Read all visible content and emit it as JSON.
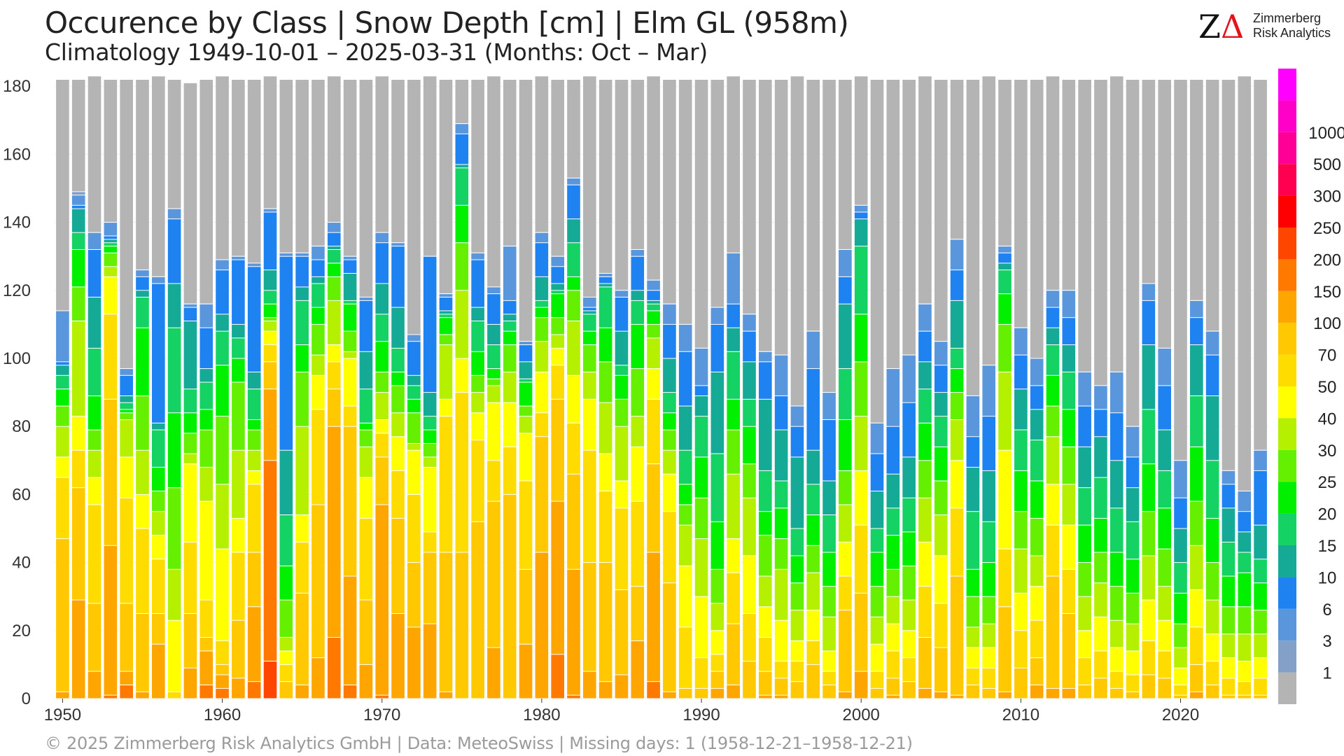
{
  "header": {
    "title": "Occurence by Class | Snow Depth [cm] | Elm  GL (958m)",
    "subtitle": "Climatology 1949-10-01 – 2025-03-31 (Months: Oct – Mar)"
  },
  "logo": {
    "mark_z": "Z",
    "mark_delta": "Δ",
    "line1": "Zimmerberg",
    "line2": "Risk Analytics"
  },
  "footer": "©  2025 Zimmerberg Risk Analytics GmbH | Data: MeteoSwiss | Missing days: 1 (1958-12-21–1958-12-21)",
  "chart_data": {
    "type": "bar",
    "stacked": true,
    "title": "Occurence by Class | Snow Depth [cm] | Elm  GL (958m)",
    "subtitle": "Climatology 1949-10-01 – 2025-03-31 (Months: Oct – Mar)",
    "xlabel": "",
    "ylabel": "",
    "ylim": [
      0,
      182
    ],
    "yticks": [
      0,
      20,
      40,
      60,
      80,
      100,
      120,
      140,
      160,
      180
    ],
    "xticks": [
      1950,
      1960,
      1970,
      1980,
      1990,
      2000,
      2010,
      2020
    ],
    "grid": true,
    "legend": "right (color bar)",
    "colorbar": {
      "labels": [
        "1",
        "3",
        "6",
        "10",
        "15",
        "20",
        "25",
        "30",
        "40",
        "50",
        "70",
        "100",
        "150",
        "200",
        "250",
        "300",
        "500",
        "1000"
      ],
      "colors": [
        "#b4b4b4",
        "#82a0c8",
        "#5a96dc",
        "#1e82f0",
        "#14aa96",
        "#14d264",
        "#00f000",
        "#64f000",
        "#b4f000",
        "#ffff00",
        "#ffdc00",
        "#ffc800",
        "#ffa500",
        "#ff7800",
        "#ff4600",
        "#ff0000",
        "#ff0050",
        "#ff0096",
        "#ff00c8",
        "#ff00ff"
      ]
    },
    "classes": [
      "0",
      "1-3",
      "3-6",
      "6-10",
      "10-15",
      "15-20",
      "20-25",
      "25-30",
      "30-40",
      "40-50",
      "50-70",
      "70-100",
      "100-150",
      "150-200",
      "200-250",
      "250-300",
      "300-500",
      "500-1000",
      ">1000"
    ],
    "class_colors": [
      "#b4b4b4",
      "#82a0c8",
      "#5a96dc",
      "#1e82f0",
      "#14aa96",
      "#14d264",
      "#00f000",
      "#64f000",
      "#b4f000",
      "#ffff00",
      "#ffdc00",
      "#ffc800",
      "#ffa500",
      "#ff7800",
      "#ff4600",
      "#ff0000",
      "#ff0050",
      "#ff0096",
      "#ff00c8"
    ],
    "years": [
      1950,
      1951,
      1952,
      1953,
      1954,
      1955,
      1956,
      1957,
      1958,
      1959,
      1960,
      1961,
      1962,
      1963,
      1964,
      1965,
      1966,
      1967,
      1968,
      1969,
      1970,
      1971,
      1972,
      1973,
      1974,
      1975,
      1976,
      1977,
      1978,
      1979,
      1980,
      1981,
      1982,
      1983,
      1984,
      1985,
      1986,
      1987,
      1988,
      1989,
      1990,
      1991,
      1992,
      1993,
      1994,
      1995,
      1996,
      1997,
      1998,
      1999,
      2000,
      2001,
      2002,
      2003,
      2004,
      2005,
      2006,
      2007,
      2008,
      2009,
      2010,
      2011,
      2012,
      2013,
      2014,
      2015,
      2016,
      2017,
      2018,
      2019,
      2020,
      2021,
      2022,
      2023,
      2024,
      2025
    ],
    "totals": [
      182,
      182,
      183,
      182,
      182,
      182,
      183,
      182,
      181,
      182,
      183,
      182,
      182,
      183,
      182,
      182,
      182,
      183,
      182,
      182,
      183,
      182,
      182,
      183,
      182,
      182,
      182,
      183,
      182,
      182,
      183,
      182,
      182,
      183,
      182,
      182,
      182,
      183,
      182,
      182,
      182,
      182,
      183,
      182,
      182,
      182,
      183,
      182,
      182,
      182,
      183,
      182,
      182,
      182,
      183,
      182,
      182,
      182,
      183,
      182,
      182,
      182,
      183,
      182,
      182,
      182,
      183,
      182,
      182,
      182,
      182,
      182,
      182,
      182,
      183,
      182
    ],
    "cumulative_tops": [
      [
        114,
        114,
        99,
        98,
        95,
        91,
        86,
        80,
        71,
        65,
        47,
        2
      ],
      [
        149,
        148,
        145,
        144,
        137,
        132,
        121,
        111,
        83,
        73,
        62,
        29
      ],
      [
        137,
        137,
        132,
        118,
        103,
        89,
        79,
        73,
        65,
        57,
        28,
        8
      ],
      [
        140,
        140,
        136,
        135,
        134,
        133,
        131,
        127,
        124,
        113,
        88,
        45,
        1
      ],
      [
        97,
        97,
        95,
        89,
        87,
        85,
        84,
        82,
        71,
        59,
        28,
        8,
        4
      ],
      [
        126,
        126,
        124,
        120,
        118,
        109,
        89,
        73,
        60,
        50,
        25,
        2
      ],
      [
        124,
        124,
        122,
        81,
        79,
        68,
        61,
        55,
        48,
        41,
        25,
        16
      ],
      [
        144,
        144,
        141,
        122,
        109,
        84,
        62,
        38,
        23,
        2
      ],
      [
        116,
        116,
        115,
        111,
        91,
        84,
        78,
        72,
        69,
        46,
        25,
        9
      ],
      [
        116,
        116,
        109,
        97,
        93,
        85,
        79,
        68,
        58,
        29,
        18,
        14,
        4
      ],
      [
        129,
        129,
        126,
        113,
        108,
        98,
        83,
        63,
        44,
        17,
        10,
        7,
        3
      ],
      [
        130,
        130,
        129,
        110,
        106,
        100,
        93,
        73,
        53,
        43,
        23,
        6
      ],
      [
        128,
        128,
        127,
        96,
        91,
        82,
        79,
        73,
        67,
        63,
        43,
        27,
        5
      ],
      [
        144,
        144,
        143,
        126,
        120,
        116,
        112,
        111,
        108,
        104,
        99,
        91,
        70,
        11
      ],
      [
        131,
        131,
        130,
        73,
        54,
        39,
        29,
        18,
        14,
        10,
        5
      ],
      [
        131,
        131,
        130,
        121,
        117,
        104,
        96,
        80,
        54,
        46,
        31,
        4
      ],
      [
        133,
        133,
        129,
        124,
        122,
        115,
        110,
        101,
        95,
        85,
        57,
        12
      ],
      [
        140,
        140,
        137,
        133,
        132,
        128,
        124,
        117,
        104,
        99,
        91,
        80,
        18
      ],
      [
        130,
        130,
        129,
        125,
        117,
        116,
        108,
        102,
        100,
        86,
        80,
        36,
        4
      ],
      [
        118,
        118,
        117,
        102,
        91,
        81,
        79,
        74,
        65,
        53,
        29,
        10
      ],
      [
        137,
        137,
        134,
        122,
        113,
        105,
        96,
        90,
        82,
        78,
        71,
        57,
        1
      ],
      [
        134,
        134,
        133,
        115,
        103,
        96,
        92,
        84,
        77,
        67,
        53,
        25
      ],
      [
        107,
        107,
        105,
        95,
        92,
        88,
        84,
        75,
        73,
        60,
        40,
        21
      ],
      [
        130,
        130,
        130,
        90,
        83,
        79,
        75,
        71,
        68,
        49,
        43,
        22
      ],
      [
        119,
        119,
        118,
        114,
        113,
        112,
        107,
        104,
        88,
        83,
        43,
        2
      ],
      [
        169,
        169,
        166,
        157,
        156,
        145,
        134,
        120,
        100,
        90,
        43
      ],
      [
        131,
        131,
        129,
        115,
        111,
        102,
        95,
        90,
        84,
        76,
        52
      ],
      [
        121,
        121,
        119,
        110,
        104,
        97,
        94,
        92,
        87,
        70,
        58,
        15
      ],
      [
        133,
        133,
        117,
        113,
        111,
        108,
        104,
        96,
        87,
        74,
        60
      ],
      [
        105,
        105,
        104,
        99,
        94,
        93,
        86,
        83,
        78,
        64,
        38,
        16
      ],
      [
        137,
        137,
        134,
        124,
        117,
        115,
        112,
        105,
        96,
        84,
        77,
        43
      ],
      [
        130,
        130,
        127,
        122,
        120,
        119,
        112,
        107,
        103,
        98,
        88,
        58,
        13
      ],
      [
        153,
        153,
        151,
        141,
        134,
        124,
        120,
        111,
        95,
        81,
        66,
        38,
        1
      ],
      [
        118,
        118,
        115,
        114,
        113,
        108,
        104,
        96,
        88,
        73,
        40,
        8
      ],
      [
        125,
        125,
        124,
        122,
        121,
        109,
        99,
        87,
        72,
        61,
        40,
        5
      ],
      [
        120,
        120,
        118,
        108,
        98,
        95,
        88,
        80,
        64,
        56,
        32,
        7
      ],
      [
        132,
        132,
        130,
        120,
        117,
        110,
        97,
        83,
        74,
        58,
        33,
        17
      ],
      [
        123,
        123,
        120,
        117,
        116,
        114,
        110,
        106,
        97,
        88,
        69,
        43,
        5
      ],
      [
        116,
        116,
        110,
        100,
        90,
        84,
        79,
        73,
        66,
        55,
        34,
        2
      ],
      [
        110,
        110,
        102,
        86,
        73,
        63,
        57,
        51,
        39,
        21,
        3
      ],
      [
        103,
        103,
        92,
        89,
        83,
        71,
        59,
        47,
        30,
        12,
        3
      ],
      [
        115,
        115,
        110,
        96,
        72,
        52,
        38,
        28,
        20,
        13,
        8,
        3
      ],
      [
        131,
        131,
        116,
        109,
        102,
        88,
        79,
        66,
        47,
        37,
        22,
        4
      ],
      [
        113,
        113,
        108,
        99,
        88,
        80,
        69,
        59,
        42,
        25,
        11
      ],
      [
        102,
        102,
        99,
        88,
        67,
        55,
        48,
        36,
        27,
        18,
        8,
        1
      ],
      [
        101,
        101,
        89,
        79,
        64,
        56,
        47,
        38,
        23,
        11,
        6,
        1
      ],
      [
        86,
        86,
        80,
        71,
        50,
        42,
        34,
        26,
        17,
        11,
        5
      ],
      [
        108,
        108,
        97,
        73,
        63,
        54,
        45,
        37,
        26,
        17,
        10
      ],
      [
        90,
        90,
        82,
        64,
        54,
        43,
        33,
        24,
        14,
        8,
        4
      ],
      [
        132,
        132,
        124,
        116,
        97,
        82,
        67,
        57,
        46,
        36,
        26,
        2
      ],
      [
        145,
        145,
        143,
        141,
        133,
        113,
        99,
        83,
        67,
        51,
        31,
        8
      ],
      [
        81,
        81,
        72,
        61,
        50,
        43,
        33,
        24,
        16,
        8,
        3
      ],
      [
        97,
        97,
        80,
        66,
        56,
        48,
        38,
        30,
        22,
        14,
        6,
        1
      ],
      [
        101,
        101,
        87,
        71,
        59,
        49,
        39,
        29,
        20,
        12,
        5
      ],
      [
        116,
        116,
        108,
        99,
        91,
        81,
        70,
        59,
        46,
        33,
        18,
        3
      ],
      [
        105,
        105,
        98,
        90,
        83,
        74,
        64,
        54,
        42,
        28,
        15,
        2
      ],
      [
        135,
        135,
        126,
        117,
        103,
        97,
        90,
        82,
        70,
        56,
        36,
        1
      ],
      [
        89,
        89,
        77,
        68,
        55,
        38,
        30,
        21,
        15,
        9,
        4
      ],
      [
        98,
        98,
        83,
        67,
        52,
        40,
        30,
        22,
        15,
        9,
        3
      ],
      [
        133,
        133,
        131,
        128,
        126,
        119,
        110,
        96,
        73,
        44,
        27,
        2
      ],
      [
        109,
        109,
        101,
        91,
        79,
        67,
        55,
        44,
        31,
        20,
        9
      ],
      [
        100,
        100,
        92,
        85,
        76,
        64,
        53,
        42,
        33,
        23,
        12,
        4
      ],
      [
        120,
        120,
        115,
        109,
        104,
        95,
        86,
        77,
        63,
        51,
        36,
        3
      ],
      [
        120,
        120,
        112,
        104,
        96,
        85,
        74,
        63,
        51,
        38,
        25,
        3
      ],
      [
        96,
        96,
        86,
        74,
        62,
        51,
        40,
        30,
        20,
        12,
        4
      ],
      [
        92,
        92,
        85,
        77,
        65,
        53,
        43,
        34,
        24,
        14,
        6
      ],
      [
        96,
        96,
        84,
        70,
        56,
        43,
        33,
        23,
        15,
        8,
        3
      ],
      [
        80,
        80,
        71,
        62,
        52,
        41,
        31,
        22,
        14,
        7,
        2
      ],
      [
        122,
        122,
        117,
        104,
        85,
        69,
        55,
        42,
        29,
        17,
        7
      ],
      [
        103,
        103,
        92,
        79,
        67,
        56,
        44,
        33,
        23,
        14,
        6
      ],
      [
        70,
        70,
        59,
        50,
        40,
        31,
        22,
        15,
        9,
        4,
        1
      ],
      [
        117,
        117,
        112,
        104,
        89,
        74,
        58,
        45,
        32,
        21,
        10,
        2
      ],
      [
        108,
        108,
        101,
        89,
        70,
        53,
        40,
        29,
        19,
        11,
        4
      ],
      [
        67,
        67,
        63,
        56,
        46,
        36,
        27,
        19,
        12,
        6,
        1
      ],
      [
        61,
        61,
        55,
        49,
        43,
        37,
        27,
        19,
        11,
        5,
        1
      ],
      [
        73,
        73,
        67,
        51,
        41,
        34,
        26,
        19,
        12,
        6,
        1
      ]
    ]
  }
}
